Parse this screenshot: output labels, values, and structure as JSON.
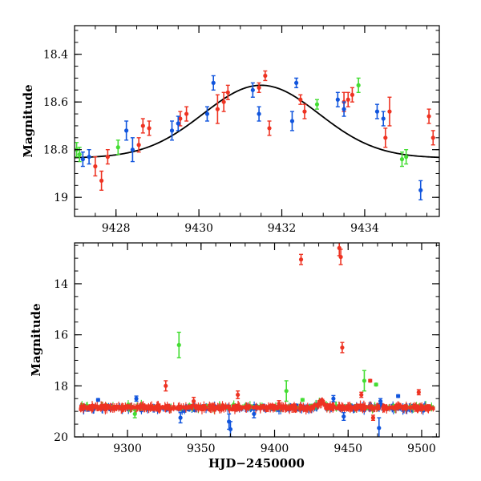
{
  "chart_data": [
    {
      "type": "scatter",
      "title": "",
      "xlabel": "",
      "ylabel": "Magnitude",
      "xlim": [
        9427.0,
        9435.8
      ],
      "ylim": [
        19.08,
        18.28
      ],
      "y_inverted": true,
      "xticks": [
        9428,
        9430,
        9432,
        9434
      ],
      "yticks": [
        18.4,
        18.6,
        18.8,
        19
      ],
      "ytick_labels": [
        "18.4",
        "18.6",
        "18.8",
        "19"
      ],
      "model_curve": {
        "type": "gaussian_dip",
        "baseline": 18.835,
        "amplitude": 0.305,
        "center": 9431.5,
        "sigma": 1.4,
        "color": "#000000"
      },
      "series": [
        {
          "name": "red",
          "color": "#ee3322",
          "points": [
            {
              "x": 9427.5,
              "y": 18.87,
              "err": 0.04
            },
            {
              "x": 9427.65,
              "y": 18.93,
              "err": 0.04
            },
            {
              "x": 9427.8,
              "y": 18.83,
              "err": 0.03
            },
            {
              "x": 9428.55,
              "y": 18.78,
              "err": 0.03
            },
            {
              "x": 9428.65,
              "y": 18.7,
              "err": 0.03
            },
            {
              "x": 9428.8,
              "y": 18.71,
              "err": 0.03
            },
            {
              "x": 9429.55,
              "y": 18.67,
              "err": 0.03
            },
            {
              "x": 9429.7,
              "y": 18.65,
              "err": 0.03
            },
            {
              "x": 9430.45,
              "y": 18.63,
              "err": 0.06
            },
            {
              "x": 9430.6,
              "y": 18.6,
              "err": 0.04
            },
            {
              "x": 9430.7,
              "y": 18.56,
              "err": 0.03
            },
            {
              "x": 9431.45,
              "y": 18.54,
              "err": 0.02
            },
            {
              "x": 9431.6,
              "y": 18.49,
              "err": 0.02
            },
            {
              "x": 9431.7,
              "y": 18.71,
              "err": 0.03
            },
            {
              "x": 9432.45,
              "y": 18.59,
              "err": 0.02
            },
            {
              "x": 9432.55,
              "y": 18.64,
              "err": 0.03
            },
            {
              "x": 9433.5,
              "y": 18.6,
              "err": 0.04
            },
            {
              "x": 9433.6,
              "y": 18.59,
              "err": 0.03
            },
            {
              "x": 9433.7,
              "y": 18.57,
              "err": 0.03
            },
            {
              "x": 9434.5,
              "y": 18.75,
              "err": 0.04
            },
            {
              "x": 9434.6,
              "y": 18.64,
              "err": 0.06
            },
            {
              "x": 9435.55,
              "y": 18.66,
              "err": 0.03
            },
            {
              "x": 9435.65,
              "y": 18.75,
              "err": 0.03
            }
          ]
        },
        {
          "name": "blue",
          "color": "#1155dd",
          "points": [
            {
              "x": 9427.2,
              "y": 18.84,
              "err": 0.03
            },
            {
              "x": 9427.35,
              "y": 18.83,
              "err": 0.03
            },
            {
              "x": 9428.25,
              "y": 18.72,
              "err": 0.04
            },
            {
              "x": 9428.4,
              "y": 18.8,
              "err": 0.05
            },
            {
              "x": 9429.35,
              "y": 18.72,
              "err": 0.04
            },
            {
              "x": 9429.5,
              "y": 18.69,
              "err": 0.03
            },
            {
              "x": 9430.2,
              "y": 18.65,
              "err": 0.03
            },
            {
              "x": 9430.35,
              "y": 18.52,
              "err": 0.03
            },
            {
              "x": 9431.3,
              "y": 18.55,
              "err": 0.03
            },
            {
              "x": 9431.45,
              "y": 18.65,
              "err": 0.03
            },
            {
              "x": 9432.25,
              "y": 18.68,
              "err": 0.04
            },
            {
              "x": 9432.35,
              "y": 18.52,
              "err": 0.02
            },
            {
              "x": 9433.35,
              "y": 18.59,
              "err": 0.03
            },
            {
              "x": 9433.5,
              "y": 18.63,
              "err": 0.03
            },
            {
              "x": 9434.3,
              "y": 18.64,
              "err": 0.03
            },
            {
              "x": 9434.45,
              "y": 18.67,
              "err": 0.03
            },
            {
              "x": 9435.35,
              "y": 18.97,
              "err": 0.04
            }
          ]
        },
        {
          "name": "green",
          "color": "#44dd33",
          "points": [
            {
              "x": 9427.05,
              "y": 18.8,
              "err": 0.03
            },
            {
              "x": 9427.12,
              "y": 18.82,
              "err": 0.03
            },
            {
              "x": 9428.05,
              "y": 18.79,
              "err": 0.03
            },
            {
              "x": 9432.85,
              "y": 18.61,
              "err": 0.02
            },
            {
              "x": 9433.85,
              "y": 18.53,
              "err": 0.03
            },
            {
              "x": 9434.9,
              "y": 18.84,
              "err": 0.03
            },
            {
              "x": 9435.0,
              "y": 18.83,
              "err": 0.03
            }
          ]
        }
      ]
    },
    {
      "type": "scatter",
      "title": "",
      "xlabel": "HJD−2450000",
      "ylabel": "Magnitude",
      "xlim": [
        9264,
        9512
      ],
      "ylim": [
        20.0,
        12.4
      ],
      "y_inverted": true,
      "xticks": [
        9300,
        9350,
        9400,
        9450,
        9500
      ],
      "yticks": [
        14,
        16,
        18,
        20
      ],
      "ytick_labels": [
        "14",
        "16",
        "18",
        "20"
      ],
      "baseline": {
        "red": 18.85,
        "blue": 18.87,
        "green": 18.83
      },
      "highlight_window": [
        9427,
        9436
      ],
      "series": [
        {
          "name": "red",
          "color": "#ee3322",
          "points": [
            {
              "x": 9326,
              "y": 18.0,
              "err": 0.2
            },
            {
              "x": 9375,
              "y": 18.35,
              "err": 0.15
            },
            {
              "x": 9418,
              "y": 13.05,
              "err": 0.2
            },
            {
              "x": 9444,
              "y": 12.6,
              "err": 0.3
            },
            {
              "x": 9445,
              "y": 12.95,
              "err": 0.3
            },
            {
              "x": 9446,
              "y": 16.5,
              "err": 0.2
            },
            {
              "x": 9459,
              "y": 18.35,
              "err": 0.1
            },
            {
              "x": 9465,
              "y": 17.8,
              "err": 0.05
            },
            {
              "x": 9498,
              "y": 18.25,
              "err": 0.1
            },
            {
              "x": 9467,
              "y": 19.25,
              "err": 0.1
            },
            {
              "x": 9403,
              "y": 18.7,
              "err": 0.12
            },
            {
              "x": 9345,
              "y": 18.6,
              "err": 0.15
            }
          ]
        },
        {
          "name": "blue",
          "color": "#1155dd",
          "points": [
            {
              "x": 9336,
              "y": 19.25,
              "err": 0.2
            },
            {
              "x": 9369,
              "y": 19.4,
              "err": 0.3
            },
            {
              "x": 9370,
              "y": 19.7,
              "err": 0.3
            },
            {
              "x": 9447,
              "y": 19.2,
              "err": 0.15
            },
            {
              "x": 9471,
              "y": 19.65,
              "err": 0.4
            },
            {
              "x": 9386,
              "y": 19.1,
              "err": 0.15
            },
            {
              "x": 9484,
              "y": 18.4,
              "err": 0.05
            },
            {
              "x": 9306,
              "y": 18.5,
              "err": 0.1
            },
            {
              "x": 9280,
              "y": 18.55,
              "err": 0.05
            },
            {
              "x": 9440,
              "y": 18.5,
              "err": 0.12
            },
            {
              "x": 9472,
              "y": 18.6,
              "err": 0.1
            }
          ]
        },
        {
          "name": "green",
          "color": "#44dd33",
          "points": [
            {
              "x": 9335,
              "y": 16.4,
              "err": 0.5
            },
            {
              "x": 9408,
              "y": 18.2,
              "err": 0.4
            },
            {
              "x": 9461,
              "y": 17.8,
              "err": 0.4
            },
            {
              "x": 9469,
              "y": 17.95,
              "err": 0.05
            },
            {
              "x": 9419,
              "y": 18.55,
              "err": 0.05
            },
            {
              "x": 9305,
              "y": 19.1,
              "err": 0.15
            }
          ]
        }
      ]
    }
  ]
}
